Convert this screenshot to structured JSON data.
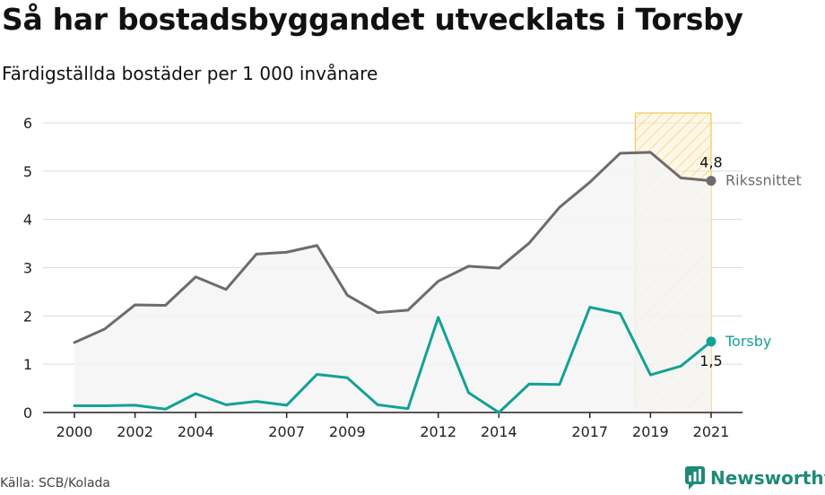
{
  "header": {
    "title": "Så har bostadsbyggandet utvecklats i Torsby",
    "subtitle": "Färdigställda bostäder per 1 000 invånare"
  },
  "footer": {
    "source": "Källa: SCB/Kolada",
    "brand": "Newsworthy",
    "brand_icon": "newsworthy-logo-icon"
  },
  "colors": {
    "riks": "#6e6a6f",
    "torsby": "#12a294",
    "fill": "#f4f4f5",
    "grid": "#dcdcdc",
    "highlight_fill": "#fbeeca",
    "highlight_stroke": "#f2c85c",
    "brand": "#1e8a78"
  },
  "chart_data": {
    "type": "line",
    "x": [
      2000,
      2001,
      2002,
      2003,
      2004,
      2005,
      2006,
      2007,
      2008,
      2009,
      2010,
      2011,
      2012,
      2013,
      2014,
      2015,
      2016,
      2017,
      2018,
      2019,
      2020,
      2021
    ],
    "x_ticks": [
      2000,
      2002,
      2004,
      2007,
      2009,
      2012,
      2014,
      2017,
      2019,
      2021
    ],
    "x_tick_labels": [
      "2000",
      "2002",
      "2004",
      "2007",
      "2009",
      "2012",
      "2014",
      "2017",
      "2019",
      "2021"
    ],
    "y_ticks": [
      0,
      1,
      2,
      3,
      4,
      5,
      6
    ],
    "y_tick_labels": [
      "0",
      "1",
      "2",
      "3",
      "4",
      "5",
      "6"
    ],
    "ylim": [
      0,
      6
    ],
    "grid": true,
    "highlight_range": [
      2018.5,
      2021
    ],
    "series": [
      {
        "name": "Rikssnittet",
        "values": [
          1.45,
          1.73,
          2.23,
          2.22,
          2.81,
          2.55,
          3.28,
          3.32,
          3.46,
          2.43,
          2.07,
          2.12,
          2.72,
          3.03,
          2.99,
          3.51,
          4.25,
          4.77,
          5.37,
          5.39,
          4.86,
          4.8
        ],
        "end_label": "4,8",
        "end_value": 4.8
      },
      {
        "name": "Torsby",
        "values": [
          0.14,
          0.14,
          0.15,
          0.07,
          0.39,
          0.16,
          0.23,
          0.15,
          0.79,
          0.72,
          0.16,
          0.08,
          1.97,
          0.41,
          0.0,
          0.59,
          0.58,
          2.18,
          2.05,
          0.78,
          0.96,
          1.47
        ],
        "end_label": "1,5",
        "end_value": 1.47
      }
    ]
  }
}
